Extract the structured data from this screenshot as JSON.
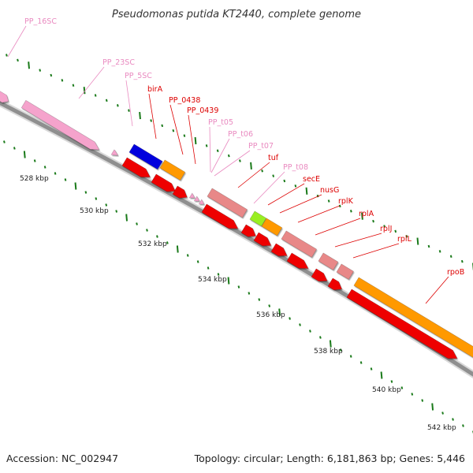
{
  "title": "Pseudomonas putida KT2440, complete genome",
  "footer": {
    "accession": "Accession: NC_002947",
    "topology": "Topology: circular; Length: 6,181,863 bp; Genes: 5,446"
  },
  "colors": {
    "backbone": "#9a9a9a",
    "tick_green": "#1a7a1a",
    "rna": "#f5a3cc",
    "rna_label": "#e98ac0",
    "protein_label": "#dd0000",
    "red": "#ee0000",
    "salmon": "#e88888",
    "blue": "#0000dd",
    "orange": "#ff9900",
    "lime": "#99ee22"
  },
  "scale_labels": [
    "528 kbp",
    "530 kbp",
    "532 kbp",
    "534 kbp",
    "536 kbp",
    "538 kbp",
    "540 kbp",
    "542 kbp"
  ],
  "gene_labels": [
    {
      "text": "PP_16SC",
      "kind": "rna"
    },
    {
      "text": "PP_23SC",
      "kind": "rna"
    },
    {
      "text": "PP_5SC",
      "kind": "rna"
    },
    {
      "text": "birA",
      "kind": "protein"
    },
    {
      "text": "PP_0438",
      "kind": "protein"
    },
    {
      "text": "PP_0439",
      "kind": "protein"
    },
    {
      "text": "PP_t05",
      "kind": "rna"
    },
    {
      "text": "PP_t06",
      "kind": "rna"
    },
    {
      "text": "PP_t07",
      "kind": "rna"
    },
    {
      "text": "tuf",
      "kind": "protein"
    },
    {
      "text": "PP_t08",
      "kind": "rna"
    },
    {
      "text": "secE",
      "kind": "protein"
    },
    {
      "text": "nusG",
      "kind": "protein"
    },
    {
      "text": "rplK",
      "kind": "protein"
    },
    {
      "text": "rplA",
      "kind": "protein"
    },
    {
      "text": "rplJ",
      "kind": "protein"
    },
    {
      "text": "rplL",
      "kind": "protein"
    },
    {
      "text": "rpoB",
      "kind": "protein"
    }
  ]
}
